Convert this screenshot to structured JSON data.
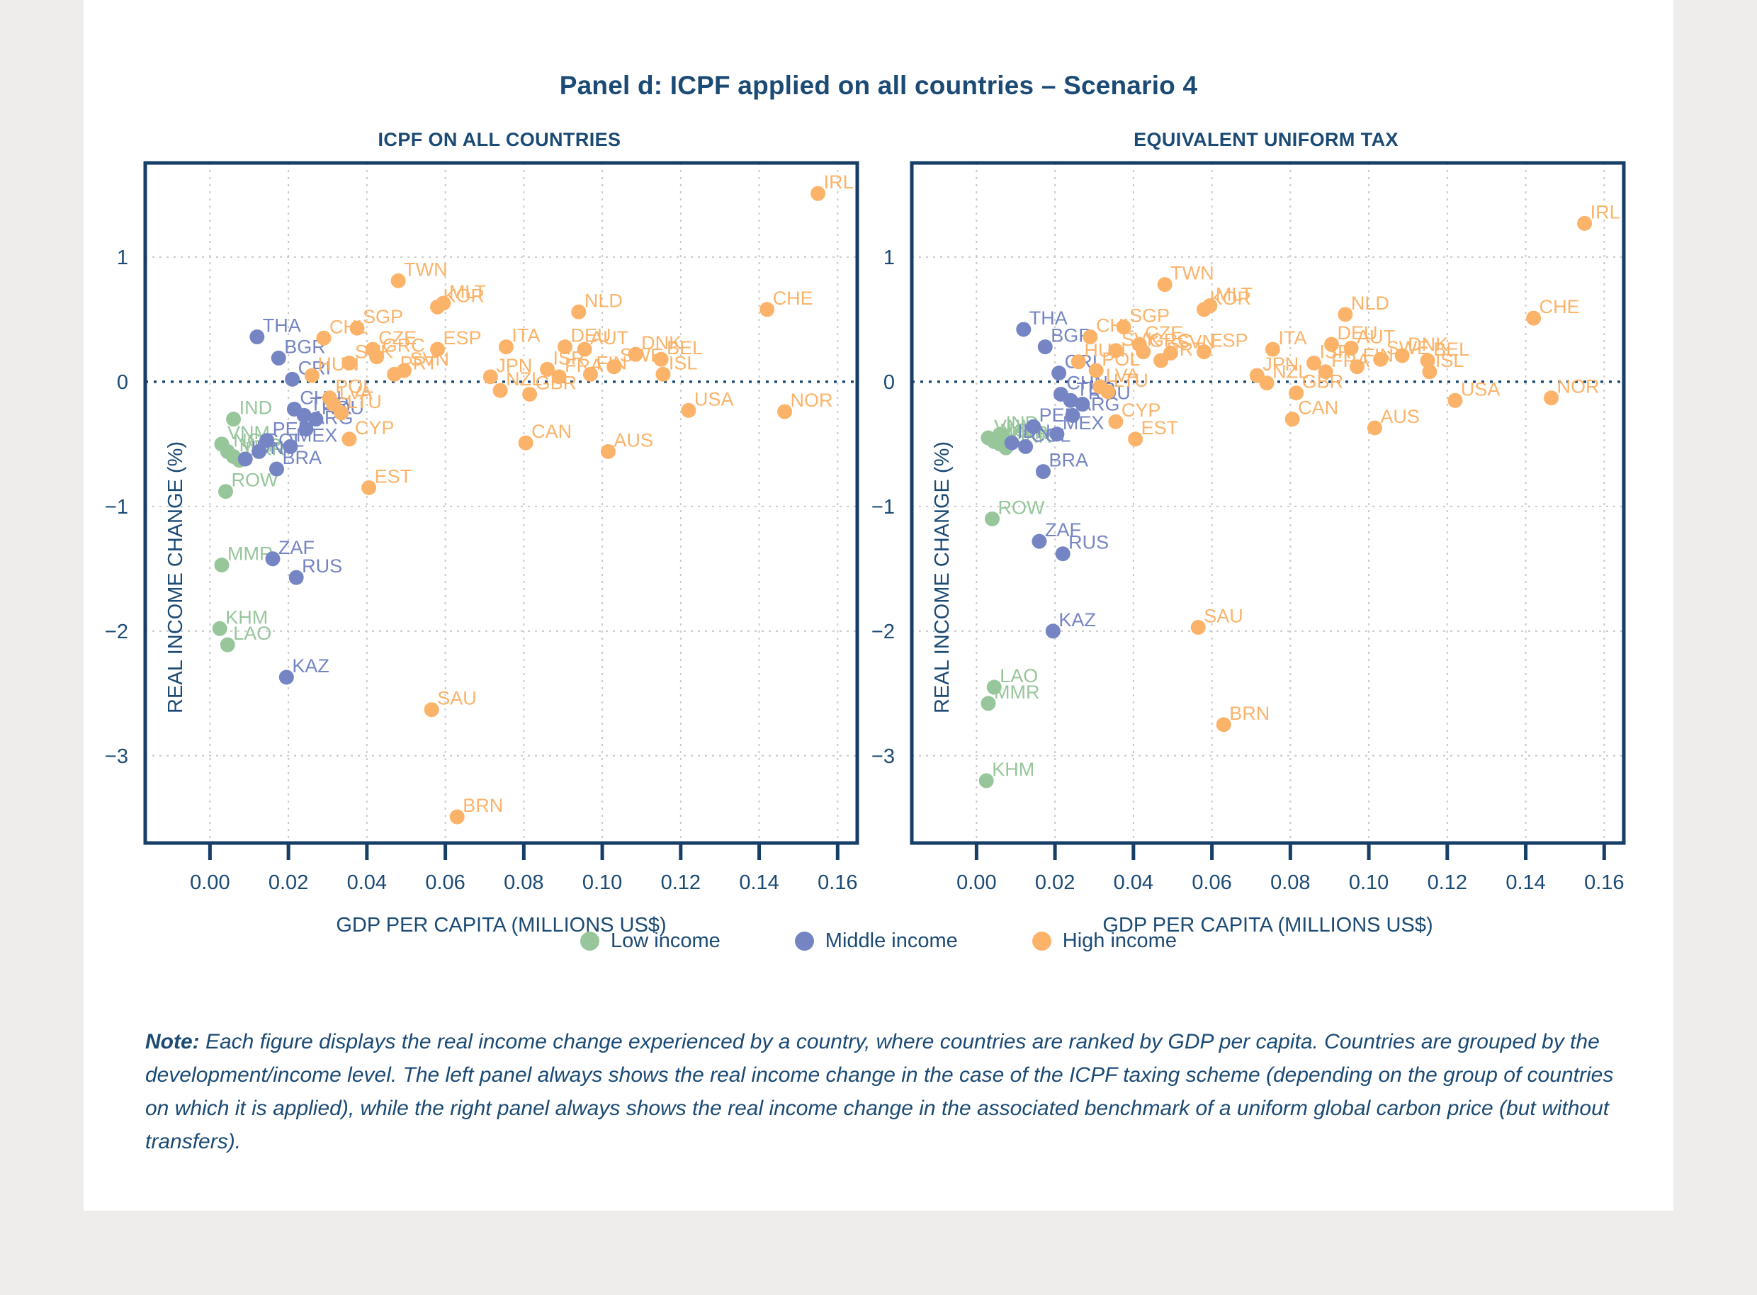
{
  "page": {
    "title": "Panel d: ICPF applied on all countries – Scenario 4",
    "note_label": "Note:",
    "note_text": " Each figure displays the real income change experienced by a country, where countries are ranked by GDP per capita. Countries are grouped by the development/income level. The left panel always shows the real income change in the case of the ICPF taxing scheme (depending on the group of countries on which it is applied), while the right panel always shows the real income change in the associated benchmark of a uniform global carbon price (but without transfers)."
  },
  "panels": [
    {
      "title": "ICPF ON ALL COUNTRIES"
    },
    {
      "title": "EQUIVALENT UNIFORM TAX"
    }
  ],
  "legend": [
    {
      "label": "Low income",
      "color": "#97c69b"
    },
    {
      "label": "Middle income",
      "color": "#7585c3"
    },
    {
      "label": "High income",
      "color": "#fbb369"
    }
  ],
  "colors": {
    "navy_text": "#1b4a74",
    "axis_border": "#163e67",
    "gridline": "#c9c9c9",
    "zero_line": "#1b4a74"
  },
  "chart_data": [
    {
      "type": "scatter",
      "title": "ICPF ON ALL COUNTRIES",
      "xlabel": "GDP PER CAPITA (MILLIONS US$)",
      "ylabel": "REAL INCOME CHANGE (%)",
      "xlim": [
        -0.0165,
        0.165
      ],
      "ylim": [
        -3.7,
        1.755
      ],
      "xticks": [
        0.0,
        0.02,
        0.04,
        0.06,
        0.08,
        0.1,
        0.12,
        0.14,
        0.16
      ],
      "yticks": [
        1,
        0,
        -1,
        -2,
        -3
      ],
      "grid": true,
      "legend_position": "bottom",
      "series": [
        {
          "name": "Low income",
          "color": "#97c69b",
          "points": [
            {
              "label": "IND",
              "x": 0.006,
              "y": -0.3
            },
            {
              "label": "VNM",
              "x": 0.003,
              "y": -0.5
            },
            {
              "label": "NGA",
              "x": 0.0045,
              "y": -0.56
            },
            {
              "label": "MAR",
              "x": 0.006,
              "y": -0.6
            },
            {
              "label": "UKR",
              "x": 0.0075,
              "y": -0.63
            },
            {
              "label": "ROW",
              "x": 0.004,
              "y": -0.88
            },
            {
              "label": "MMR",
              "x": 0.003,
              "y": -1.47
            },
            {
              "label": "KHM",
              "x": 0.0025,
              "y": -1.98
            },
            {
              "label": "LAO",
              "x": 0.0045,
              "y": -2.11
            }
          ]
        },
        {
          "name": "Middle income",
          "color": "#7585c3",
          "points": [
            {
              "label": "THA",
              "x": 0.012,
              "y": 0.36
            },
            {
              "label": "BGR",
              "x": 0.0175,
              "y": 0.19
            },
            {
              "label": "CRI",
              "x": 0.021,
              "y": 0.02
            },
            {
              "label": "CHN",
              "x": 0.0215,
              "y": -0.22
            },
            {
              "label": "TUR",
              "x": 0.024,
              "y": -0.27
            },
            {
              "label": "ROU",
              "x": 0.027,
              "y": -0.3
            },
            {
              "label": "ARG",
              "x": 0.0245,
              "y": -0.38
            },
            {
              "label": "PER",
              "x": 0.0145,
              "y": -0.47
            },
            {
              "label": "MEX",
              "x": 0.0205,
              "y": -0.52
            },
            {
              "label": "COL",
              "x": 0.0125,
              "y": -0.56
            },
            {
              "label": "IDN",
              "x": 0.009,
              "y": -0.62
            },
            {
              "label": "BRA",
              "x": 0.017,
              "y": -0.7
            },
            {
              "label": "ZAF",
              "x": 0.016,
              "y": -1.42
            },
            {
              "label": "RUS",
              "x": 0.022,
              "y": -1.57
            },
            {
              "label": "KAZ",
              "x": 0.0195,
              "y": -2.37
            }
          ]
        },
        {
          "name": "High income",
          "color": "#fbb369",
          "points": [
            {
              "label": "IRL",
              "x": 0.155,
              "y": 1.51
            },
            {
              "label": "TWN",
              "x": 0.048,
              "y": 0.81
            },
            {
              "label": "MLT",
              "x": 0.0595,
              "y": 0.63
            },
            {
              "label": "KOR",
              "x": 0.058,
              "y": 0.6
            },
            {
              "label": "CHE",
              "x": 0.142,
              "y": 0.58
            },
            {
              "label": "NLD",
              "x": 0.094,
              "y": 0.56
            },
            {
              "label": "SGP",
              "x": 0.0375,
              "y": 0.43
            },
            {
              "label": "CHL",
              "x": 0.029,
              "y": 0.35
            },
            {
              "label": "ITA",
              "x": 0.0755,
              "y": 0.28
            },
            {
              "label": "DEU",
              "x": 0.0905,
              "y": 0.28
            },
            {
              "label": "ESP",
              "x": 0.058,
              "y": 0.26
            },
            {
              "label": "CZE",
              "x": 0.0415,
              "y": 0.26
            },
            {
              "label": "AUT",
              "x": 0.0955,
              "y": 0.26
            },
            {
              "label": "DNK",
              "x": 0.1085,
              "y": 0.22
            },
            {
              "label": "GRC",
              "x": 0.0425,
              "y": 0.2
            },
            {
              "label": "BEL",
              "x": 0.115,
              "y": 0.18
            },
            {
              "label": "SVK",
              "x": 0.0355,
              "y": 0.15
            },
            {
              "label": "SWE",
              "x": 0.103,
              "y": 0.12
            },
            {
              "label": "ISR",
              "x": 0.086,
              "y": 0.1
            },
            {
              "label": "SVN",
              "x": 0.0495,
              "y": 0.09
            },
            {
              "label": "PRT",
              "x": 0.047,
              "y": 0.06
            },
            {
              "label": "FIN",
              "x": 0.097,
              "y": 0.06
            },
            {
              "label": "ISL",
              "x": 0.1155,
              "y": 0.06
            },
            {
              "label": "HUN",
              "x": 0.026,
              "y": 0.05
            },
            {
              "label": "JPN",
              "x": 0.0715,
              "y": 0.04
            },
            {
              "label": "FRA",
              "x": 0.089,
              "y": 0.04
            },
            {
              "label": "NZL",
              "x": 0.074,
              "y": -0.07
            },
            {
              "label": "GBR",
              "x": 0.0815,
              "y": -0.1
            },
            {
              "label": "POL",
              "x": 0.0305,
              "y": -0.13
            },
            {
              "label": "LVA",
              "x": 0.0315,
              "y": -0.18
            },
            {
              "label": "USA",
              "x": 0.122,
              "y": -0.23
            },
            {
              "label": "NOR",
              "x": 0.1465,
              "y": -0.24
            },
            {
              "label": "LTU",
              "x": 0.0335,
              "y": -0.25
            },
            {
              "label": "CYP",
              "x": 0.0355,
              "y": -0.46
            },
            {
              "label": "CAN",
              "x": 0.0805,
              "y": -0.49
            },
            {
              "label": "AUS",
              "x": 0.1015,
              "y": -0.56
            },
            {
              "label": "EST",
              "x": 0.0405,
              "y": -0.85
            },
            {
              "label": "SAU",
              "x": 0.0565,
              "y": -2.63
            },
            {
              "label": "BRN",
              "x": 0.063,
              "y": -3.49
            }
          ]
        }
      ]
    },
    {
      "type": "scatter",
      "title": "EQUIVALENT UNIFORM TAX",
      "xlabel": "GDP PER CAPITA (MILLIONS US$)",
      "ylabel": "REAL INCOME CHANGE (%)",
      "xlim": [
        -0.0165,
        0.165
      ],
      "ylim": [
        -3.7,
        1.755
      ],
      "xticks": [
        0.0,
        0.02,
        0.04,
        0.06,
        0.08,
        0.1,
        0.12,
        0.14,
        0.16
      ],
      "yticks": [
        1,
        0,
        -1,
        -2,
        -3
      ],
      "grid": true,
      "legend_position": "bottom",
      "series": [
        {
          "name": "Low income",
          "color": "#97c69b",
          "points": [
            {
              "label": "IND",
              "x": 0.006,
              "y": -0.42
            },
            {
              "label": "VNM",
              "x": 0.003,
              "y": -0.45
            },
            {
              "label": "NGA",
              "x": 0.0045,
              "y": -0.48
            },
            {
              "label": "MAR",
              "x": 0.006,
              "y": -0.5
            },
            {
              "label": "UKR",
              "x": 0.0075,
              "y": -0.53
            },
            {
              "label": "ROW",
              "x": 0.004,
              "y": -1.1
            },
            {
              "label": "LAO",
              "x": 0.0045,
              "y": -2.45
            },
            {
              "label": "MMR",
              "x": 0.003,
              "y": -2.58
            },
            {
              "label": "KHM",
              "x": 0.0025,
              "y": -3.2
            }
          ]
        },
        {
          "name": "Middle income",
          "color": "#7585c3",
          "points": [
            {
              "label": "THA",
              "x": 0.012,
              "y": 0.42
            },
            {
              "label": "BGR",
              "x": 0.0175,
              "y": 0.28
            },
            {
              "label": "CRI",
              "x": 0.021,
              "y": 0.07
            },
            {
              "label": "CHN",
              "x": 0.0215,
              "y": -0.1
            },
            {
              "label": "TUR",
              "x": 0.024,
              "y": -0.15
            },
            {
              "label": "ROU",
              "x": 0.027,
              "y": -0.18
            },
            {
              "label": "ARG",
              "x": 0.0245,
              "y": -0.27
            },
            {
              "label": "PER",
              "x": 0.0145,
              "y": -0.36
            },
            {
              "label": "MEX",
              "x": 0.0205,
              "y": -0.42
            },
            {
              "label": "IDN",
              "x": 0.009,
              "y": -0.49
            },
            {
              "label": "COL",
              "x": 0.0125,
              "y": -0.52
            },
            {
              "label": "BRA",
              "x": 0.017,
              "y": -0.72
            },
            {
              "label": "ZAF",
              "x": 0.016,
              "y": -1.28
            },
            {
              "label": "RUS",
              "x": 0.022,
              "y": -1.38
            },
            {
              "label": "KAZ",
              "x": 0.0195,
              "y": -2.0
            }
          ]
        },
        {
          "name": "High income",
          "color": "#fbb369",
          "points": [
            {
              "label": "IRL",
              "x": 0.155,
              "y": 1.27
            },
            {
              "label": "TWN",
              "x": 0.048,
              "y": 0.78
            },
            {
              "label": "MLT",
              "x": 0.0595,
              "y": 0.61
            },
            {
              "label": "KOR",
              "x": 0.058,
              "y": 0.58
            },
            {
              "label": "NLD",
              "x": 0.094,
              "y": 0.54
            },
            {
              "label": "CHE",
              "x": 0.142,
              "y": 0.51
            },
            {
              "label": "SGP",
              "x": 0.0375,
              "y": 0.44
            },
            {
              "label": "CHL",
              "x": 0.029,
              "y": 0.36
            },
            {
              "label": "CZE",
              "x": 0.0415,
              "y": 0.3
            },
            {
              "label": "DEU",
              "x": 0.0905,
              "y": 0.3
            },
            {
              "label": "AUT",
              "x": 0.0955,
              "y": 0.27
            },
            {
              "label": "ITA",
              "x": 0.0755,
              "y": 0.26
            },
            {
              "label": "SVK",
              "x": 0.0355,
              "y": 0.25
            },
            {
              "label": "ESP",
              "x": 0.058,
              "y": 0.24
            },
            {
              "label": "GRC",
              "x": 0.0425,
              "y": 0.24
            },
            {
              "label": "SVN",
              "x": 0.0495,
              "y": 0.23
            },
            {
              "label": "DNK",
              "x": 0.1085,
              "y": 0.21
            },
            {
              "label": "SWE",
              "x": 0.103,
              "y": 0.18
            },
            {
              "label": "BEL",
              "x": 0.115,
              "y": 0.17
            },
            {
              "label": "PRT",
              "x": 0.047,
              "y": 0.17
            },
            {
              "label": "HUN",
              "x": 0.026,
              "y": 0.16
            },
            {
              "label": "ISR",
              "x": 0.086,
              "y": 0.15
            },
            {
              "label": "FIN",
              "x": 0.097,
              "y": 0.12
            },
            {
              "label": "POL",
              "x": 0.0305,
              "y": 0.09
            },
            {
              "label": "FRA",
              "x": 0.089,
              "y": 0.08
            },
            {
              "label": "ISL",
              "x": 0.1155,
              "y": 0.08
            },
            {
              "label": "JPN",
              "x": 0.0715,
              "y": 0.05
            },
            {
              "label": "NZL",
              "x": 0.074,
              "y": -0.01
            },
            {
              "label": "LVA",
              "x": 0.0315,
              "y": -0.04
            },
            {
              "label": "LTU",
              "x": 0.0335,
              "y": -0.08
            },
            {
              "label": "GBR",
              "x": 0.0815,
              "y": -0.09
            },
            {
              "label": "NOR",
              "x": 0.1465,
              "y": -0.13
            },
            {
              "label": "USA",
              "x": 0.122,
              "y": -0.15
            },
            {
              "label": "CAN",
              "x": 0.0805,
              "y": -0.3
            },
            {
              "label": "CYP",
              "x": 0.0355,
              "y": -0.32
            },
            {
              "label": "AUS",
              "x": 0.1015,
              "y": -0.37
            },
            {
              "label": "EST",
              "x": 0.0405,
              "y": -0.46
            },
            {
              "label": "SAU",
              "x": 0.0565,
              "y": -1.97
            },
            {
              "label": "BRN",
              "x": 0.063,
              "y": -2.75
            }
          ]
        }
      ]
    }
  ]
}
